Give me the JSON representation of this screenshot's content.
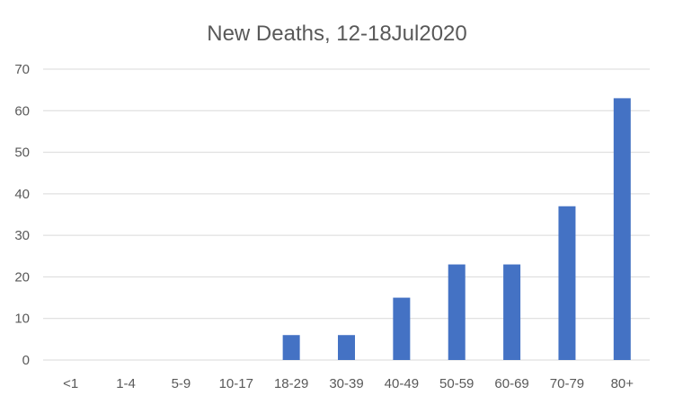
{
  "chart_data": {
    "type": "bar",
    "title": "New Deaths, 12-18Jul2020",
    "xlabel": "",
    "ylabel": "",
    "categories": [
      "<1",
      "1-4",
      "5-9",
      "10-17",
      "18-29",
      "30-39",
      "40-49",
      "50-59",
      "60-69",
      "70-79",
      "80+"
    ],
    "values": [
      0,
      0,
      0,
      0,
      6,
      6,
      15,
      23,
      23,
      37,
      63
    ],
    "ylim": [
      0,
      70
    ],
    "yticks": [
      0,
      10,
      20,
      30,
      40,
      50,
      60,
      70
    ],
    "grid": true,
    "legend": "none",
    "bar_color": "#4472C4",
    "gridline_color": "#D9D9D9",
    "text_color": "#595959"
  }
}
